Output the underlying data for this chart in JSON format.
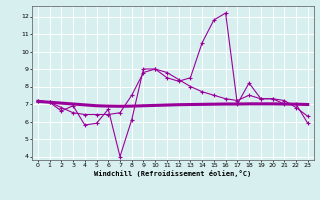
{
  "xlabel": "Windchill (Refroidissement éolien,°C)",
  "background_color": "#d8eff0",
  "grid_color": "#ffffff",
  "line_color": "#990099",
  "xlim": [
    -0.5,
    23.5
  ],
  "ylim": [
    3.8,
    12.6
  ],
  "yticks": [
    4,
    5,
    6,
    7,
    8,
    9,
    10,
    11,
    12
  ],
  "xticks": [
    0,
    1,
    2,
    3,
    4,
    5,
    6,
    7,
    8,
    9,
    10,
    11,
    12,
    13,
    14,
    15,
    16,
    17,
    18,
    19,
    20,
    21,
    22,
    23
  ],
  "line1_x": [
    0,
    1,
    2,
    3,
    4,
    5,
    6,
    7,
    8,
    9,
    10,
    11,
    12,
    13,
    14,
    15,
    16,
    17,
    18,
    19,
    20,
    21,
    22,
    23
  ],
  "line1_y": [
    7.2,
    7.1,
    6.6,
    6.9,
    5.8,
    5.9,
    6.7,
    4.0,
    6.1,
    9.0,
    9.0,
    8.5,
    8.3,
    8.5,
    10.5,
    11.8,
    12.2,
    7.0,
    8.2,
    7.3,
    7.3,
    7.0,
    7.0,
    5.9
  ],
  "line2_x": [
    0,
    1,
    2,
    3,
    4,
    5,
    6,
    7,
    8,
    9,
    10,
    11,
    12,
    13,
    14,
    15,
    16,
    17,
    18,
    19,
    20,
    21,
    22,
    23
  ],
  "line2_y": [
    7.15,
    7.1,
    7.05,
    7.0,
    6.95,
    6.9,
    6.88,
    6.87,
    6.88,
    6.9,
    6.92,
    6.94,
    6.96,
    6.97,
    6.98,
    6.99,
    7.0,
    7.0,
    7.01,
    7.01,
    7.01,
    7.0,
    6.99,
    6.97
  ],
  "line3_x": [
    0,
    1,
    2,
    3,
    4,
    5,
    6,
    7,
    8,
    9,
    10,
    11,
    12,
    13,
    14,
    15,
    16,
    17,
    18,
    19,
    20,
    21,
    22,
    23
  ],
  "line3_y": [
    7.2,
    7.1,
    6.8,
    6.5,
    6.4,
    6.4,
    6.4,
    6.5,
    7.5,
    8.8,
    9.0,
    8.8,
    8.4,
    8.0,
    7.7,
    7.5,
    7.3,
    7.2,
    7.5,
    7.3,
    7.3,
    7.2,
    6.8,
    6.3
  ]
}
